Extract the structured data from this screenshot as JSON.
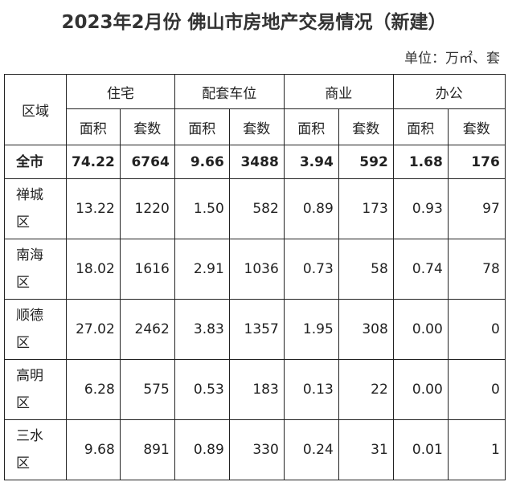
{
  "title": "2023年2月份  佛山市房地产交易情况（新建）",
  "unit": "单位：万㎡、套",
  "table": {
    "region_header": "区域",
    "groups": [
      "住宅",
      "配套车位",
      "商业",
      "办公"
    ],
    "subheaders": [
      "面积",
      "套数",
      "面积",
      "套数",
      "面积",
      "套数",
      "面积",
      "套数"
    ],
    "rows": [
      {
        "region": "全市",
        "cells": [
          "74.22",
          "6764",
          "9.66",
          "3488",
          "3.94",
          "592",
          "1.68",
          "176"
        ]
      },
      {
        "region": "禅城区",
        "cells": [
          "13.22",
          "1220",
          "1.50",
          "582",
          "0.89",
          "173",
          "0.93",
          "97"
        ]
      },
      {
        "region": "南海区",
        "cells": [
          "18.02",
          "1616",
          "2.91",
          "1036",
          "0.73",
          "58",
          "0.74",
          "78"
        ]
      },
      {
        "region": "顺德区",
        "cells": [
          "27.02",
          "2462",
          "3.83",
          "1357",
          "1.95",
          "308",
          "0.00",
          "0"
        ]
      },
      {
        "region": "高明区",
        "cells": [
          "6.28",
          "575",
          "0.53",
          "183",
          "0.13",
          "22",
          "0.00",
          "0"
        ]
      },
      {
        "region": "三水区",
        "cells": [
          "9.68",
          "891",
          "0.89",
          "330",
          "0.24",
          "31",
          "0.01",
          "1"
        ]
      }
    ]
  }
}
